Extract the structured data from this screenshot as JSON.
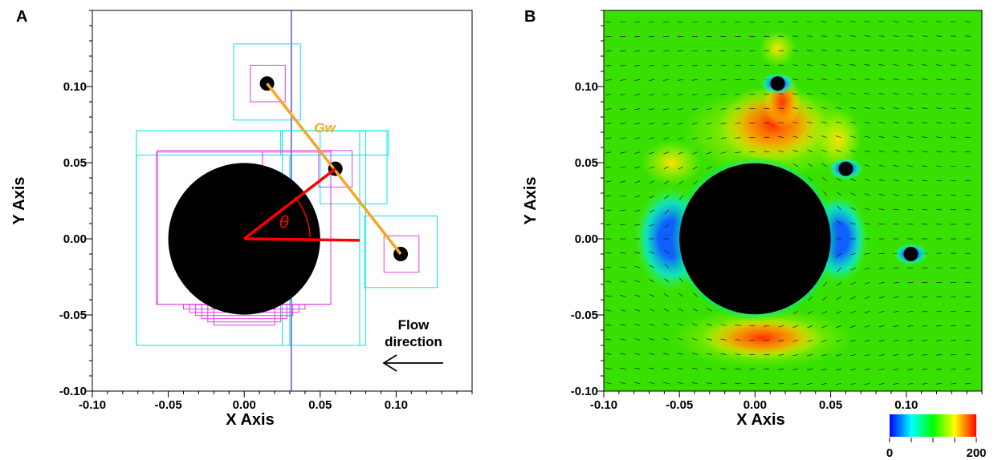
{
  "chart_data": [
    {
      "panel": "A",
      "type": "scatter",
      "xlabel": "X Axis",
      "ylabel": "Y Axis",
      "xlim": [
        -0.1,
        0.15
      ],
      "ylim": [
        -0.1,
        0.15
      ],
      "xtick_labels": [
        "-0.10",
        "-0.05",
        "0.00",
        "0.05",
        "0.10"
      ],
      "ytick_labels": [
        "-0.10",
        "-0.05",
        "0.00",
        "0.05",
        "0.10"
      ],
      "xticks": [
        -0.1,
        -0.05,
        0.0,
        0.05,
        0.1
      ],
      "yticks": [
        -0.1,
        -0.05,
        0.0,
        0.05,
        0.1
      ],
      "main_cylinder": {
        "center": [
          0.0,
          0.0
        ],
        "radius": 0.05
      },
      "small_cylinders": [
        {
          "center": [
            0.015,
            0.102
          ],
          "radius": 0.005
        },
        {
          "center": [
            0.06,
            0.046
          ],
          "radius": 0.005
        },
        {
          "center": [
            0.103,
            -0.01
          ],
          "radius": 0.005
        }
      ],
      "line_label": "Gw",
      "angle_label": "θ",
      "annotation": [
        "Flow",
        "direction"
      ],
      "vertical_line_x": 0.031,
      "colors": {
        "cyan_boxes": "#00e5ee",
        "magenta_boxes": "#e040e0",
        "line": "#f5a623",
        "angle": "#ff0000",
        "vline": "#0000cc"
      }
    },
    {
      "panel": "B",
      "type": "heatmap",
      "xlabel": "X Axis",
      "ylabel": "Y Axis",
      "xlim": [
        -0.1,
        0.15
      ],
      "ylim": [
        -0.1,
        0.15
      ],
      "xtick_labels": [
        "-0.10",
        "-0.05",
        "0.00",
        "0.05",
        "0.10"
      ],
      "ytick_labels": [
        "-0.10",
        "-0.05",
        "0.00",
        "0.05",
        "0.10"
      ],
      "xticks": [
        -0.1,
        -0.05,
        0.0,
        0.05,
        0.1
      ],
      "yticks": [
        -0.1,
        -0.05,
        0.0,
        0.05,
        0.1
      ],
      "colorbar": {
        "min": 0,
        "max": 200,
        "min_label": "0",
        "max_label": "200"
      },
      "main_cylinder": {
        "center": [
          0.0,
          0.0
        ],
        "radius": 0.05
      },
      "small_cylinders": [
        {
          "center": [
            0.015,
            0.102
          ],
          "radius": 0.005
        },
        {
          "center": [
            0.06,
            0.046
          ],
          "radius": 0.005
        },
        {
          "center": [
            0.103,
            -0.01
          ],
          "radius": 0.005
        }
      ]
    }
  ]
}
